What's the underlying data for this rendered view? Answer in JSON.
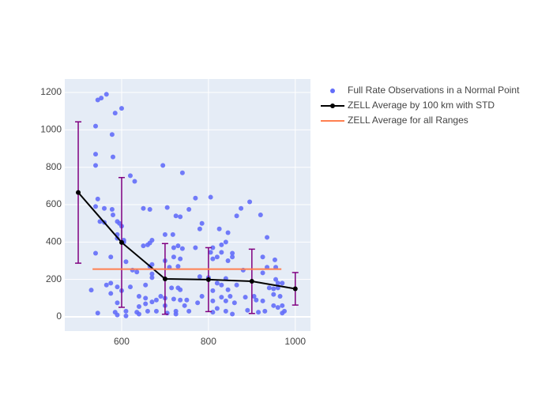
{
  "chart_data": {
    "type": "scatter",
    "xlim": [
      469,
      1035
    ],
    "ylim": [
      -76,
      1272
    ],
    "xticks": [
      600,
      800,
      1000
    ],
    "yticks": [
      0,
      200,
      400,
      600,
      800,
      1000,
      1200
    ],
    "grid": true,
    "legend": "right",
    "series": [
      {
        "name": "Full Rate Observations in a Normal Point",
        "color": "#636efa",
        "mode": "markers",
        "x": [
          565,
          545,
          553,
          600,
          585,
          540,
          578,
          540,
          580,
          540,
          695,
          740,
          620,
          630,
          545,
          770,
          805,
          895,
          540,
          560,
          578,
          650,
          665,
          705,
          755,
          875,
          580,
          725,
          735,
          865,
          920,
          550,
          560,
          590,
          595,
          785,
          600,
          780,
          825,
          590,
          700,
          718,
          845,
          935,
          590,
          605,
          670,
          605,
          665,
          840,
          830,
          730,
          660,
          650,
          720,
          770,
          810,
          740,
          830,
          805,
          855,
          540,
          575,
          855,
          810,
          820,
          925,
          720,
          735,
          953,
          700,
          845,
          610,
          670,
          665,
          730,
          710,
          935,
          955,
          880,
          625,
          635,
          925,
          670,
          955,
          960,
          670,
          800,
          780,
          840,
          820,
          575,
          565,
          655,
          830,
          865,
          940,
          950,
          960,
          970,
          590,
          620,
          730,
          715,
          845,
          735,
          530,
          810,
          600,
          575,
          950,
          965,
          785,
          850,
          640,
          655,
          700,
          690,
          885,
          905,
          830,
          910,
          925,
          720,
          735,
          750,
          810,
          840,
          860,
          680,
          670,
          655,
          590,
          640,
          700,
          745,
          775,
          950,
          960,
          970,
          820,
          890,
          930,
          970,
          975,
          545,
          585,
          610,
          635,
          660,
          680,
          705,
          725,
          755,
          725,
          810,
          840,
          855,
          915,
          590,
          610,
          640
        ],
        "values": [
          1190,
          1160,
          1170,
          1115,
          1090,
          1020,
          975,
          870,
          855,
          810,
          810,
          770,
          755,
          725,
          630,
          635,
          640,
          615,
          590,
          580,
          575,
          580,
          575,
          585,
          575,
          580,
          545,
          540,
          535,
          540,
          545,
          510,
          505,
          510,
          500,
          500,
          485,
          470,
          470,
          440,
          440,
          440,
          450,
          425,
          420,
          410,
          410,
          400,
          395,
          400,
          385,
          380,
          385,
          380,
          370,
          370,
          370,
          365,
          345,
          345,
          340,
          340,
          320,
          320,
          310,
          320,
          320,
          320,
          310,
          305,
          300,
          300,
          295,
          280,
          270,
          270,
          265,
          265,
          265,
          250,
          250,
          240,
          235,
          230,
          200,
          180,
          210,
          210,
          215,
          205,
          180,
          180,
          170,
          170,
          170,
          170,
          155,
          150,
          155,
          180,
          160,
          160,
          155,
          155,
          145,
          145,
          143,
          140,
          140,
          125,
          120,
          110,
          110,
          110,
          110,
          100,
          100,
          110,
          105,
          110,
          105,
          90,
          85,
          95,
          90,
          90,
          85,
          85,
          75,
          90,
          80,
          70,
          75,
          55,
          60,
          60,
          75,
          60,
          50,
          60,
          45,
          35,
          30,
          20,
          30,
          20,
          25,
          30,
          25,
          30,
          30,
          20,
          30,
          30,
          15,
          25,
          30,
          15,
          25,
          10,
          5,
          15
        ]
      },
      {
        "name": "ZELL Average by 100 km with STD",
        "color": "#000000",
        "mode": "lines+markers",
        "x": [
          500,
          600,
          700,
          800,
          900,
          1000
        ],
        "values": [
          665,
          398,
          203,
          199,
          190,
          150
        ],
        "error": [
          378,
          347,
          189,
          171,
          172,
          87
        ],
        "error_color": "#800080"
      },
      {
        "name": "ZELL Average for all Ranges",
        "color": "#ff7f50",
        "mode": "lines",
        "x": [
          533,
          968
        ],
        "values": [
          255,
          255
        ]
      }
    ]
  }
}
